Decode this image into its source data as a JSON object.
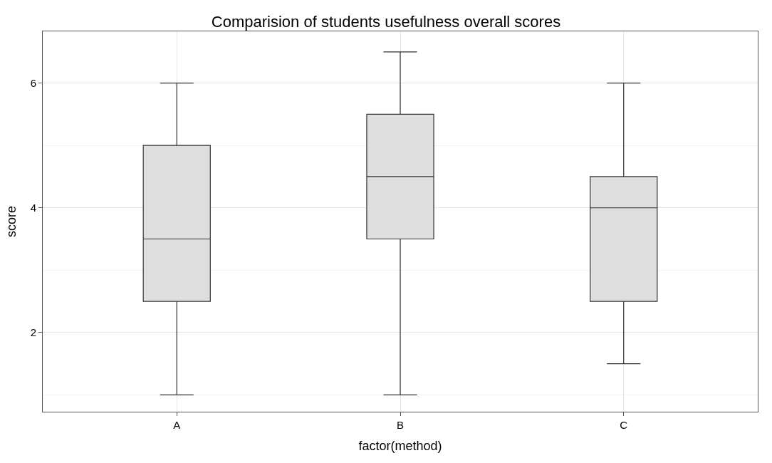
{
  "chart_data": {
    "type": "box",
    "title": "Comparision of students usefulness overall scores",
    "xlabel": "factor(method)",
    "ylabel": "score",
    "categories": [
      "A",
      "B",
      "C"
    ],
    "boxes": [
      {
        "low": 1,
        "q1": 2.5,
        "median": 3.5,
        "q3": 5,
        "high": 6
      },
      {
        "low": 1,
        "q1": 3.5,
        "median": 4.5,
        "q3": 5.5,
        "high": 6.5
      },
      {
        "low": 1.5,
        "q1": 2.5,
        "median": 4,
        "q3": 4.5,
        "high": 6
      }
    ],
    "ylim": [
      0.73,
      6.83
    ],
    "yticks": [
      2,
      4,
      6
    ],
    "grid": true
  }
}
